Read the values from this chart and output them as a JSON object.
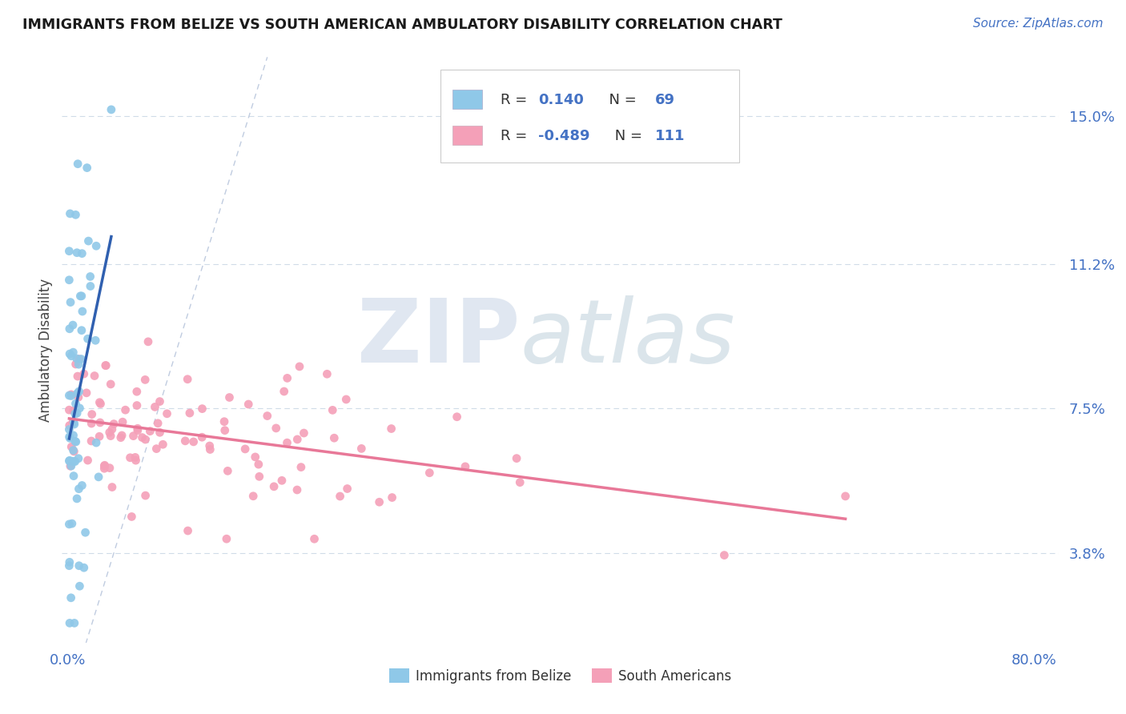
{
  "title": "IMMIGRANTS FROM BELIZE VS SOUTH AMERICAN AMBULATORY DISABILITY CORRELATION CHART",
  "source": "Source: ZipAtlas.com",
  "ylabel_ticks": [
    "3.8%",
    "7.5%",
    "11.2%",
    "15.0%"
  ],
  "ylabel_values": [
    0.038,
    0.075,
    0.112,
    0.15
  ],
  "xlabel_values": [
    0.0,
    0.8
  ],
  "xlabel_ticks": [
    "0.0%",
    "80.0%"
  ],
  "xmin": -0.005,
  "xmax": 0.82,
  "ymin": 0.015,
  "ymax": 0.165,
  "ylabel": "Ambulatory Disability",
  "legend_belize_label": "Immigrants from Belize",
  "legend_sa_label": "South Americans",
  "belize_R": "0.140",
  "belize_N": "69",
  "sa_R": "-0.489",
  "sa_N": "111",
  "belize_color": "#8fc8e8",
  "sa_color": "#f4a0b8",
  "belize_line_color": "#3060b0",
  "sa_line_color": "#e87898",
  "diagonal_color": "#c0cce0",
  "watermark_zip_color": "#c5d5e5",
  "watermark_atlas_color": "#b8ccd8",
  "tick_color": "#4472c4",
  "grid_color": "#d0dce8"
}
